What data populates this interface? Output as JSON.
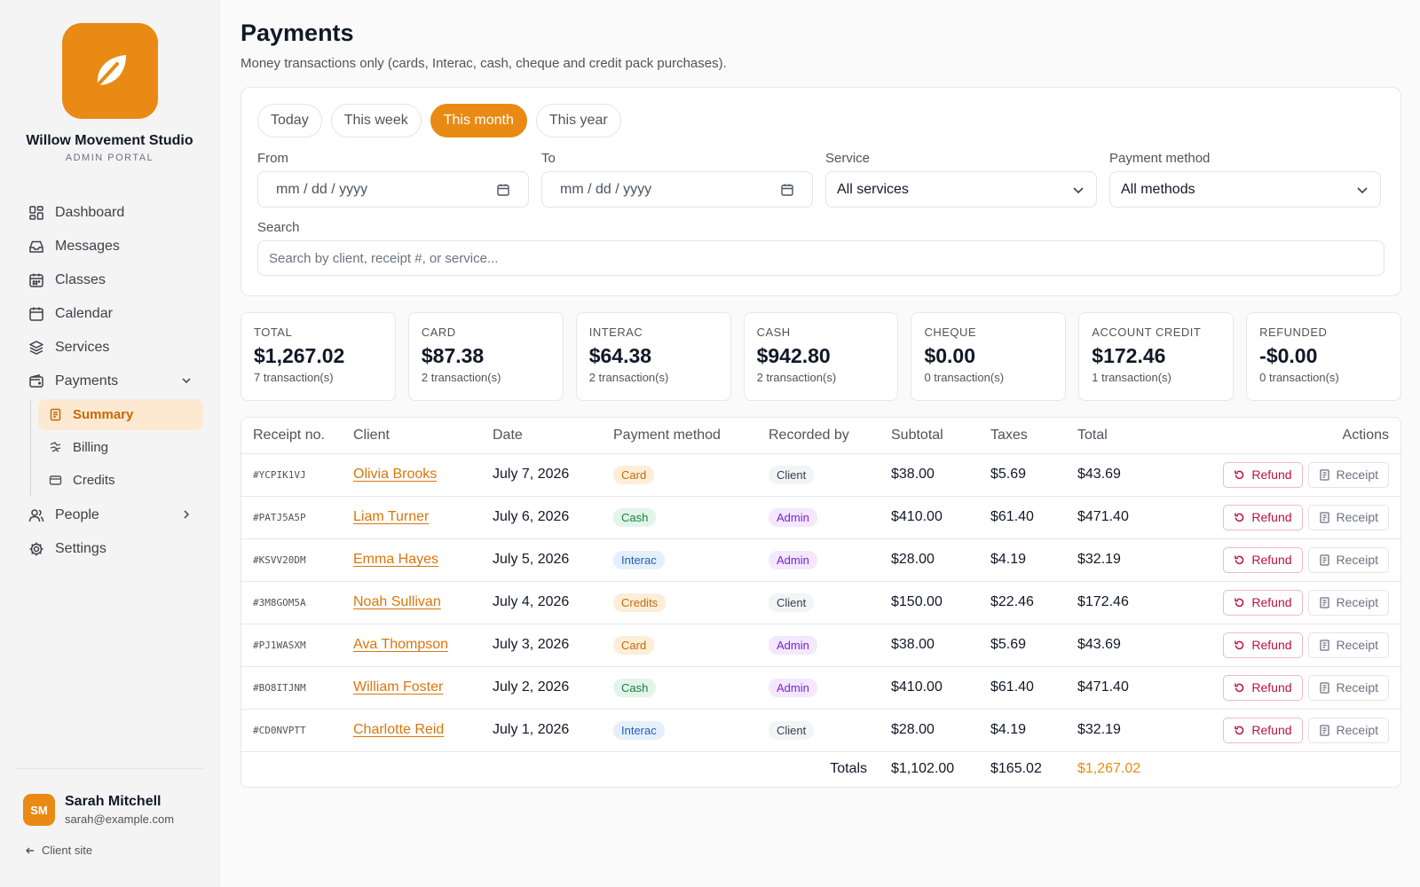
{
  "brand": {
    "name": "Willow Movement Studio",
    "subtitle": "ADMIN PORTAL"
  },
  "nav": {
    "dashboard": "Dashboard",
    "messages": "Messages",
    "classes": "Classes",
    "calendar": "Calendar",
    "services": "Services",
    "payments": "Payments",
    "summary": "Summary",
    "billing": "Billing",
    "credits": "Credits",
    "people": "People",
    "settings": "Settings"
  },
  "user": {
    "initials": "SM",
    "name": "Sarah Mitchell",
    "email": "sarah@example.com"
  },
  "client_site": "Client site",
  "page": {
    "title": "Payments",
    "subtitle": "Money transactions only (cards, Interac, cash, cheque and credit pack purchases)."
  },
  "filters": {
    "ranges": [
      "Today",
      "This week",
      "This month",
      "This year"
    ],
    "active_range": "This month",
    "from_label": "From",
    "to_label": "To",
    "date_placeholder": "mm / dd / yyyy",
    "service_label": "Service",
    "service_value": "All services",
    "method_label": "Payment method",
    "method_value": "All methods",
    "search_label": "Search",
    "search_placeholder": "Search by client, receipt #, or service..."
  },
  "summary_cards": [
    {
      "label": "TOTAL",
      "value": "$1,267.02",
      "count": "7 transaction(s)"
    },
    {
      "label": "CARD",
      "value": "$87.38",
      "count": "2 transaction(s)"
    },
    {
      "label": "INTERAC",
      "value": "$64.38",
      "count": "2 transaction(s)"
    },
    {
      "label": "CASH",
      "value": "$942.80",
      "count": "2 transaction(s)"
    },
    {
      "label": "CHEQUE",
      "value": "$0.00",
      "count": "0 transaction(s)"
    },
    {
      "label": "ACCOUNT CREDIT",
      "value": "$172.46",
      "count": "1 transaction(s)"
    },
    {
      "label": "REFUNDED",
      "value": "-$0.00",
      "count": "0 transaction(s)"
    }
  ],
  "table": {
    "headers": {
      "receipt": "Receipt no.",
      "client": "Client",
      "date": "Date",
      "method": "Payment method",
      "recorded": "Recorded by",
      "subtotal": "Subtotal",
      "taxes": "Taxes",
      "total": "Total",
      "actions": "Actions"
    },
    "refund_label": "Refund",
    "receipt_label": "Receipt",
    "rows": [
      {
        "receipt": "#YCPIK1VJ",
        "client": "Olivia Brooks",
        "date": "July 7, 2026",
        "method": "Card",
        "recorded": "Client",
        "subtotal": "$38.00",
        "taxes": "$5.69",
        "total": "$43.69"
      },
      {
        "receipt": "#PATJ5A5P",
        "client": "Liam Turner",
        "date": "July 6, 2026",
        "method": "Cash",
        "recorded": "Admin",
        "subtotal": "$410.00",
        "taxes": "$61.40",
        "total": "$471.40"
      },
      {
        "receipt": "#KSVV20DM",
        "client": "Emma Hayes",
        "date": "July 5, 2026",
        "method": "Interac",
        "recorded": "Admin",
        "subtotal": "$28.00",
        "taxes": "$4.19",
        "total": "$32.19"
      },
      {
        "receipt": "#3M8GOM5A",
        "client": "Noah Sullivan",
        "date": "July 4, 2026",
        "method": "Credits",
        "recorded": "Client",
        "subtotal": "$150.00",
        "taxes": "$22.46",
        "total": "$172.46"
      },
      {
        "receipt": "#PJ1WASXM",
        "client": "Ava Thompson",
        "date": "July 3, 2026",
        "method": "Card",
        "recorded": "Admin",
        "subtotal": "$38.00",
        "taxes": "$5.69",
        "total": "$43.69"
      },
      {
        "receipt": "#BO8ITJNM",
        "client": "William Foster",
        "date": "July 2, 2026",
        "method": "Cash",
        "recorded": "Admin",
        "subtotal": "$410.00",
        "taxes": "$61.40",
        "total": "$471.40"
      },
      {
        "receipt": "#CD0NVPTT",
        "client": "Charlotte Reid",
        "date": "July 1, 2026",
        "method": "Interac",
        "recorded": "Client",
        "subtotal": "$28.00",
        "taxes": "$4.19",
        "total": "$32.19"
      }
    ],
    "totals": {
      "label": "Totals",
      "subtotal": "$1,102.00",
      "taxes": "$165.02",
      "total": "$1,267.02"
    }
  },
  "colors": {
    "accent": "#e98a14",
    "refund": "#be123c"
  }
}
